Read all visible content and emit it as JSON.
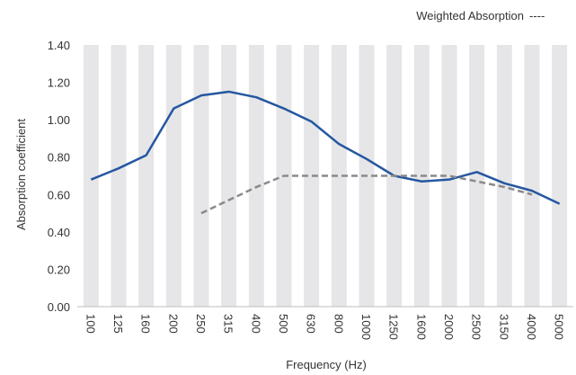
{
  "chart_data": {
    "type": "line",
    "categories": [
      "100",
      "125",
      "160",
      "200",
      "250",
      "315",
      "400",
      "500",
      "630",
      "800",
      "1000",
      "1250",
      "1600",
      "2000",
      "2500",
      "3150",
      "4000",
      "5000"
    ],
    "ylim": [
      0,
      1.4
    ],
    "yticks": [
      "0.00",
      "0.20",
      "0.40",
      "0.60",
      "0.80",
      "1.00",
      "1.20",
      "1.40"
    ],
    "xlabel": "Frequency (Hz)",
    "ylabel": "Absorption coefficient",
    "legend": {
      "position": "top-right",
      "label": "Weighted Absorption",
      "marker": "----"
    },
    "colors": {
      "band": "#e6e6e8",
      "series1": "#2557a0",
      "series2": "#8a8a8a"
    },
    "series": [
      {
        "values": [
          0.68,
          0.74,
          0.81,
          1.06,
          1.13,
          1.15,
          1.12,
          1.06,
          0.99,
          0.87,
          0.79,
          0.7,
          0.67,
          0.68,
          0.72,
          0.66,
          0.62,
          0.55
        ]
      },
      {
        "name": "Weighted Absorption",
        "values": [
          null,
          null,
          null,
          null,
          0.5,
          0.57,
          0.64,
          0.7,
          0.7,
          0.7,
          0.7,
          0.7,
          0.7,
          0.7,
          0.67,
          0.64,
          0.6,
          null
        ]
      }
    ]
  }
}
